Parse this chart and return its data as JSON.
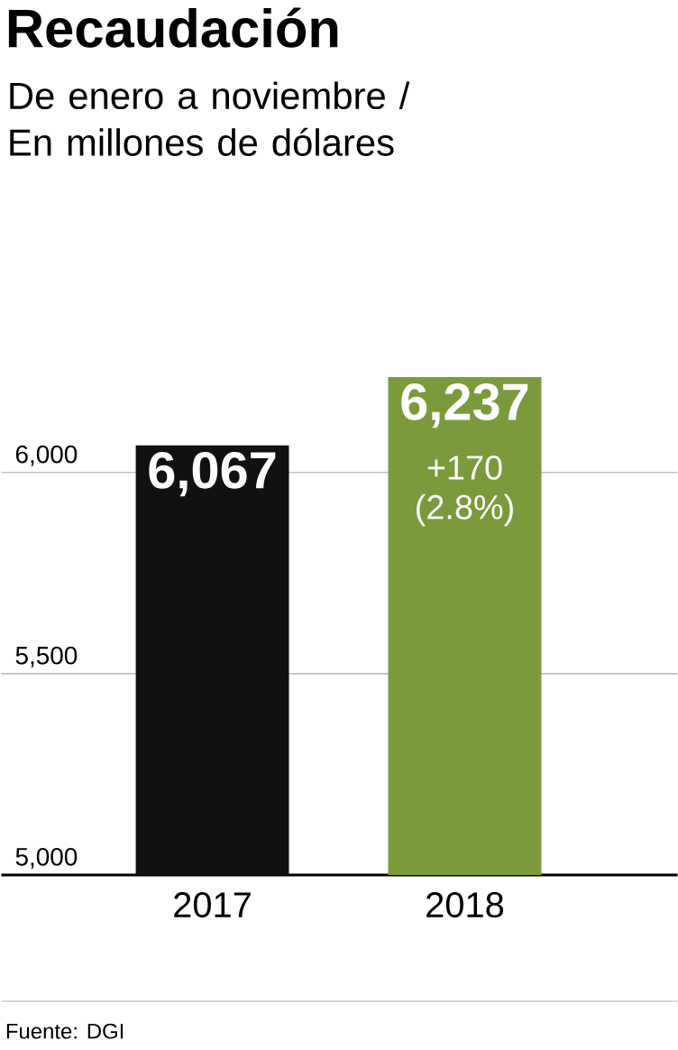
{
  "chart_data": {
    "type": "bar",
    "title": "Recaudación",
    "subtitle": "De enero a noviembre / En millones de dólares",
    "categories": [
      "2017",
      "2018"
    ],
    "values": [
      6067,
      6237
    ],
    "colors": [
      "#111111",
      "#7a9a3c"
    ],
    "value_labels": [
      "6,067",
      "6,237"
    ],
    "ylim": [
      5000,
      6237
    ],
    "yticks": [
      {
        "value": 5000,
        "label": "5,000"
      },
      {
        "value": 5500,
        "label": "5,500"
      },
      {
        "value": 6000,
        "label": "6,000"
      }
    ],
    "grid": "y",
    "annotations": [
      "+170 (2.8%)",
      "Fuente: DGI"
    ]
  }
}
